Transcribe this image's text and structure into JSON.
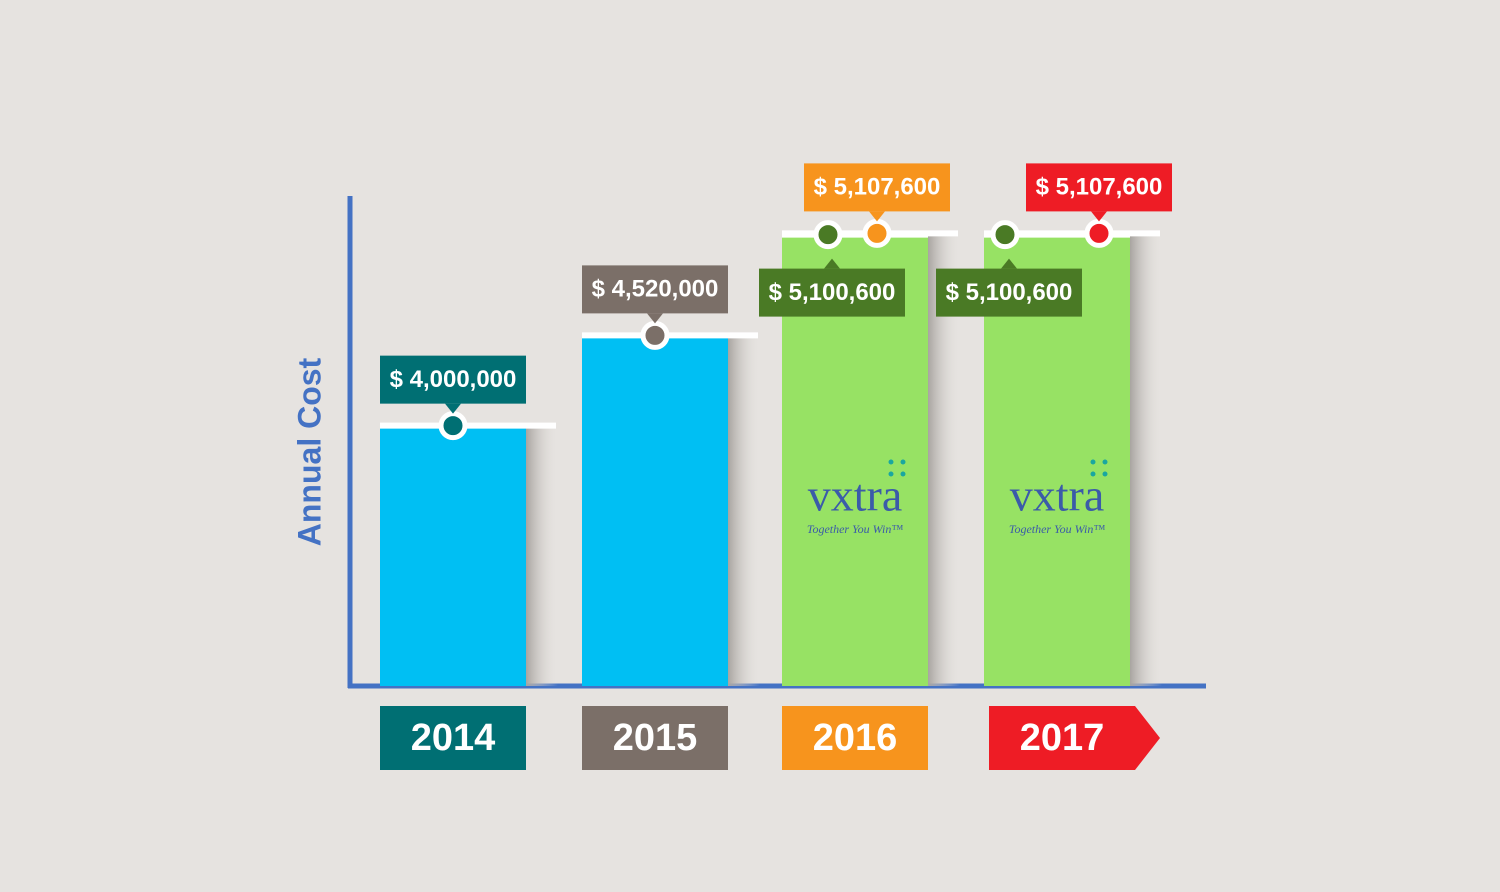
{
  "chart_data": {
    "type": "bar",
    "y_label": "Annual Cost",
    "categories": [
      "2014",
      "2015",
      "2016",
      "2017"
    ],
    "category_colors": [
      "#006f73",
      "#7b6f68",
      "#f7941d",
      "#ee1c25"
    ],
    "series": [
      {
        "color": "#00bff3",
        "values": [
          4000000,
          4520000,
          5107600,
          5107600
        ],
        "value_labels": [
          "$ 4,000,000",
          "$ 4,520,000",
          "$ 5,107,600",
          "$ 5,107,600"
        ]
      },
      {
        "color": "#97e264",
        "label_color": "#4a7a25",
        "values": [
          null,
          null,
          5100600,
          5100600
        ],
        "value_labels": [
          null,
          null,
          "$ 5,100,600",
          "$ 5,100,600"
        ]
      }
    ],
    "logo": {
      "text": "vxtra",
      "tagline": "Together You Win™"
    },
    "ylim": [
      2500000,
      5300000
    ]
  }
}
